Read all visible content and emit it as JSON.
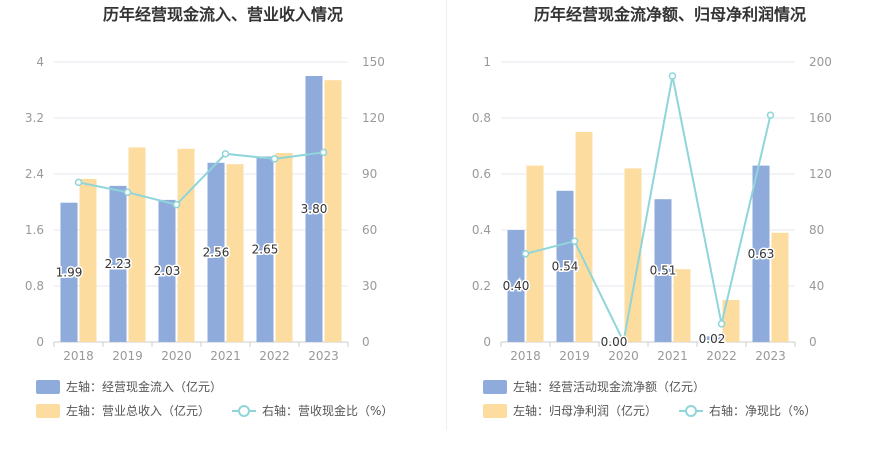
{
  "colors": {
    "bar_blue": "#8eabdb",
    "bar_orange": "#fddca0",
    "line_teal": "#8fd5d9",
    "grid": "#e6e9f2",
    "axis_text": "#999999",
    "title_text": "#333333",
    "label_text": "#333333"
  },
  "chart_data": [
    {
      "type": "bar+line",
      "title": "历年经营现金流入、营业收入情况",
      "categories": [
        "2018",
        "2019",
        "2020",
        "2021",
        "2022",
        "2023"
      ],
      "left_axis": {
        "ylim": [
          0,
          4
        ],
        "ticks": [
          "0",
          "0.8",
          "1.6",
          "2.4",
          "3.2",
          "4"
        ]
      },
      "right_axis": {
        "ylim": [
          0,
          150
        ],
        "ticks": [
          "0",
          "30",
          "60",
          "90",
          "120",
          "150"
        ]
      },
      "series": [
        {
          "name": "左轴：经营现金流入（亿元）",
          "kind": "bar",
          "axis": "left",
          "color": "#8eabdb",
          "values": [
            1.99,
            2.23,
            2.03,
            2.56,
            2.65,
            3.8
          ],
          "labels": [
            "1.99",
            "2.23",
            "2.03",
            "2.56",
            "2.65",
            "3.80"
          ]
        },
        {
          "name": "左轴：营业总收入（亿元）",
          "kind": "bar",
          "axis": "left",
          "color": "#fddca0",
          "values": [
            2.33,
            2.78,
            2.76,
            2.54,
            2.7,
            3.74
          ]
        },
        {
          "name": "右轴：营收现金比（%）",
          "kind": "line",
          "axis": "right",
          "color": "#8fd5d9",
          "values": [
            85.5,
            80.2,
            73.6,
            100.8,
            98.1,
            101.6
          ]
        }
      ]
    },
    {
      "type": "bar+line",
      "title": "历年经营现金流净额、归母净利润情况",
      "categories": [
        "2018",
        "2019",
        "2020",
        "2021",
        "2022",
        "2023"
      ],
      "left_axis": {
        "ylim": [
          0,
          1
        ],
        "ticks": [
          "0",
          "0.2",
          "0.4",
          "0.6",
          "0.8",
          "1"
        ]
      },
      "right_axis": {
        "ylim": [
          0,
          200
        ],
        "ticks": [
          "0",
          "40",
          "80",
          "120",
          "160",
          "200"
        ]
      },
      "series": [
        {
          "name": "左轴：经营活动现金流净额（亿元）",
          "kind": "bar",
          "axis": "left",
          "color": "#8eabdb",
          "values": [
            0.4,
            0.54,
            0.0,
            0.51,
            0.02,
            0.63
          ],
          "labels": [
            "0.40",
            "0.54",
            "0.00",
            "0.51",
            "0.02",
            "0.63"
          ]
        },
        {
          "name": "左轴：归母净利润（亿元）",
          "kind": "bar",
          "axis": "left",
          "color": "#fddca0",
          "values": [
            0.63,
            0.75,
            0.62,
            0.26,
            0.15,
            0.39
          ]
        },
        {
          "name": "右轴：净现比（%）",
          "kind": "line",
          "axis": "right",
          "color": "#8fd5d9",
          "values": [
            63,
            72,
            0.3,
            190,
            13,
            162
          ]
        }
      ]
    }
  ]
}
